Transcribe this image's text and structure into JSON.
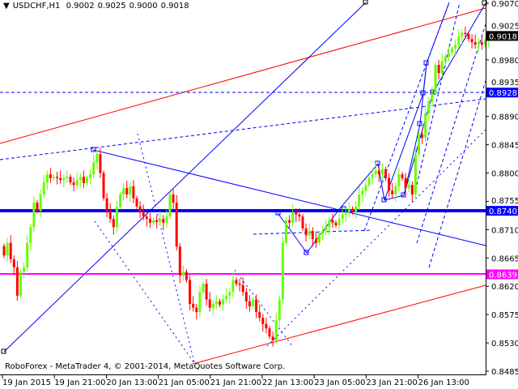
{
  "header": {
    "symbol": "USDCHF,H1",
    "open": "0.9002",
    "high": "0.9025",
    "low": "0.9000",
    "close": "0.9018"
  },
  "footer": {
    "copyright": "RoboForex - MetaTrader 4, © 2001-2014, MetaQuotes Software Corp."
  },
  "colors": {
    "bull": "#66ff00",
    "bear": "#ff0000",
    "support": "#0000ff",
    "magenta": "#ff00ff",
    "channel": "#ff0000"
  },
  "chart_data": {
    "type": "candlestick",
    "symbol": "USDCHF",
    "timeframe": "H1",
    "ylim": [
      0.8475,
      0.9075
    ],
    "y_ticks": [
      "0.9070",
      "0.9025",
      "0.8980",
      "0.8935",
      "0.8890",
      "0.8845",
      "0.8800",
      "0.8755",
      "0.8710",
      "0.8665",
      "0.8620",
      "0.8575",
      "0.8530",
      "0.8485"
    ],
    "x_ticks": [
      "19 Jan 2015",
      "19 Jan 21:00",
      "20 Jan 13:00",
      "21 Jan 05:00",
      "21 Jan 21:00",
      "22 Jan 13:00",
      "23 Jan 05:00",
      "23 Jan 21:00",
      "26 Jan 13:00"
    ],
    "price_labels": [
      {
        "value": "0.9018",
        "kind": "current",
        "color": "#000000"
      },
      {
        "value": "0.8928",
        "kind": "level",
        "color": "#0000ff"
      },
      {
        "value": "0.8740",
        "kind": "level",
        "color": "#0000ff"
      },
      {
        "value": "0.8639",
        "kind": "level",
        "color": "#ff00ff"
      }
    ],
    "closes": [
      0.8669,
      0.8689,
      0.8663,
      0.865,
      0.8605,
      0.8643,
      0.865,
      0.8689,
      0.8714,
      0.8753,
      0.874,
      0.8766,
      0.8785,
      0.8798,
      0.8792,
      0.8794,
      0.8792,
      0.8789,
      0.8792,
      0.8794,
      0.8785,
      0.8781,
      0.8789,
      0.8794,
      0.8784,
      0.8792,
      0.8798,
      0.8817,
      0.883,
      0.88,
      0.876,
      0.874,
      0.8727,
      0.8714,
      0.8746,
      0.8766,
      0.8776,
      0.8766,
      0.8779,
      0.876,
      0.8747,
      0.8738,
      0.8731,
      0.8727,
      0.8721,
      0.8725,
      0.8722,
      0.8727,
      0.8721,
      0.8731,
      0.8766,
      0.8753,
      0.8683,
      0.8637,
      0.8643,
      0.863,
      0.8592,
      0.8586,
      0.8579,
      0.8611,
      0.8624,
      0.8599,
      0.8586,
      0.8592,
      0.8596,
      0.8591,
      0.8599,
      0.8605,
      0.8611,
      0.863,
      0.8624,
      0.8622,
      0.8611,
      0.8596,
      0.8588,
      0.8599,
      0.8579,
      0.857,
      0.856,
      0.8553,
      0.854,
      0.8534,
      0.8566,
      0.8599,
      0.8689,
      0.8725,
      0.8721,
      0.8738,
      0.8734,
      0.8731,
      0.8712,
      0.8701,
      0.8708,
      0.8695,
      0.8689,
      0.8704,
      0.8708,
      0.8714,
      0.8725,
      0.8721,
      0.8717,
      0.8727,
      0.8734,
      0.8738,
      0.8743,
      0.8738,
      0.8747,
      0.8766,
      0.8772,
      0.8781,
      0.8792,
      0.8798,
      0.8804,
      0.8798,
      0.8806,
      0.8792,
      0.8772,
      0.8766,
      0.8779,
      0.8798,
      0.8792,
      0.8776,
      0.8781,
      0.8766,
      0.883,
      0.8862,
      0.8856,
      0.8895,
      0.8914,
      0.8927,
      0.8972,
      0.8959,
      0.8978,
      0.8985,
      0.8991,
      0.8998,
      0.9004,
      0.9017,
      0.9023,
      0.9021,
      0.9013,
      0.9008,
      0.9004,
      0.9008,
      0.9004,
      0.9011,
      0.9018
    ],
    "levels": [
      0.874,
      0.8639,
      0.8928
    ]
  }
}
